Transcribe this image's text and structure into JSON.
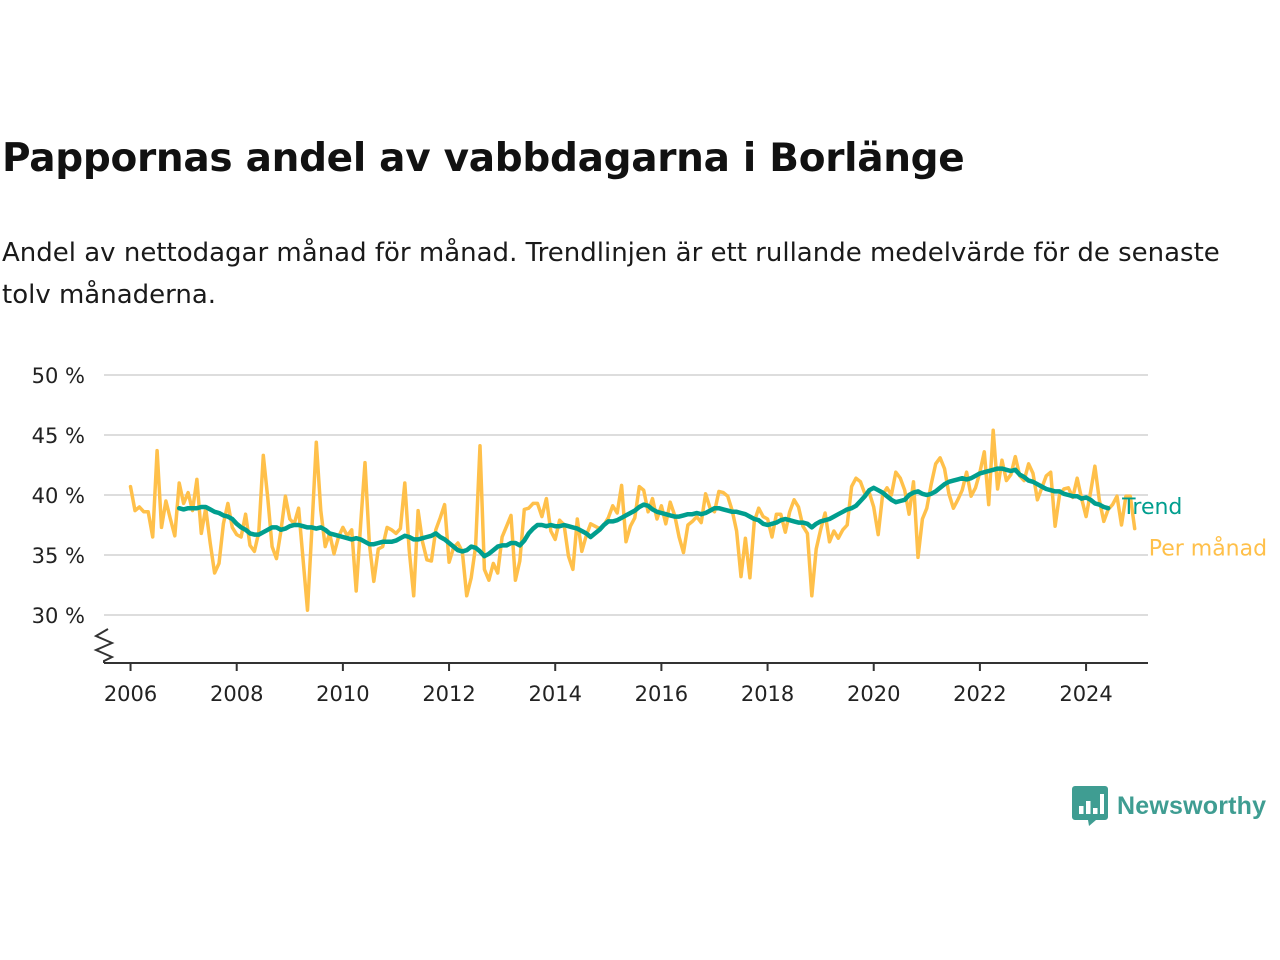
{
  "title": "Pappornas andel av vabbdagarna i Borlänge",
  "subtitle": "Andel av nettodagar månad för månad. Trendlinjen är ett rullande medelvärde för de senaste tolv månaderna.",
  "brand": "Newsworthy",
  "colors": {
    "monthly": "#ffc04a",
    "trend": "#009e8e",
    "grid": "#dddddd",
    "axis": "#333333"
  },
  "chart_data": {
    "type": "line",
    "x_unit": "date (year-month)",
    "y_unit": "percent",
    "ylim": [
      30,
      50
    ],
    "xlim": [
      "2005-07",
      "2025-03"
    ],
    "y_ticks": [
      30,
      35,
      40,
      45,
      50
    ],
    "y_tick_labels": [
      "30 %",
      "35 %",
      "40 %",
      "45 %",
      "50 %"
    ],
    "x_ticks": [
      2006,
      2008,
      2010,
      2012,
      2014,
      2016,
      2018,
      2020,
      2022,
      2024
    ],
    "x_tick_labels": [
      "2006",
      "2008",
      "2010",
      "2012",
      "2014",
      "2016",
      "2018",
      "2020",
      "2022",
      "2024"
    ],
    "axis_break": true,
    "grid": true,
    "legend": "direct labels at line ends",
    "series": [
      {
        "name": "Per månad",
        "color": "#ffc04a",
        "x_start": "2006-01",
        "frequency": "monthly",
        "values": [
          40.7,
          38.7,
          39.0,
          38.6,
          38.6,
          36.5,
          43.7,
          37.3,
          39.5,
          38.0,
          36.6,
          41.0,
          39.3,
          40.2,
          38.7,
          41.3,
          36.8,
          38.9,
          36.0,
          33.5,
          34.3,
          37.6,
          39.3,
          37.3,
          36.7,
          36.5,
          38.4,
          35.8,
          35.3,
          36.9,
          43.3,
          39.8,
          35.7,
          34.7,
          37.0,
          39.9,
          38.0,
          37.6,
          38.9,
          34.6,
          30.4,
          37.2,
          44.4,
          38.7,
          35.7,
          36.8,
          35.1,
          36.5,
          37.3,
          36.6,
          37.1,
          32.0,
          37.5,
          42.7,
          35.9,
          32.8,
          35.5,
          35.7,
          37.3,
          37.1,
          36.8,
          37.2,
          41.0,
          35.4,
          31.6,
          38.7,
          36.1,
          34.6,
          34.5,
          37.1,
          38.1,
          39.2,
          34.4,
          35.6,
          36.0,
          35.3,
          31.6,
          33.1,
          35.7,
          44.1,
          33.8,
          32.9,
          34.3,
          33.5,
          36.5,
          37.4,
          38.3,
          32.9,
          34.5,
          38.8,
          38.9,
          39.3,
          39.3,
          38.2,
          39.7,
          37.0,
          36.3,
          37.9,
          37.5,
          34.9,
          33.8,
          38.0,
          35.3,
          36.6,
          37.6,
          37.4,
          37.2,
          37.5,
          38.1,
          39.1,
          38.5,
          40.8,
          36.1,
          37.4,
          38.1,
          40.7,
          40.4,
          38.6,
          39.7,
          38.0,
          39.1,
          37.6,
          39.4,
          38.3,
          36.5,
          35.2,
          37.5,
          37.8,
          38.2,
          37.7,
          40.1,
          38.9,
          38.6,
          40.3,
          40.2,
          39.9,
          38.7,
          37.0,
          33.2,
          36.4,
          33.1,
          37.8,
          38.9,
          38.2,
          38.0,
          36.5,
          38.4,
          38.4,
          36.9,
          38.6,
          39.6,
          39.0,
          37.4,
          36.8,
          31.6,
          35.5,
          37.1,
          38.5,
          36.1,
          37.0,
          36.4,
          37.1,
          37.5,
          40.7,
          41.4,
          41.1,
          40.1,
          40.2,
          39.0,
          36.7,
          40.0,
          40.6,
          40.0,
          41.9,
          41.4,
          40.4,
          38.4,
          41.1,
          34.8,
          38.0,
          38.9,
          40.9,
          42.6,
          43.1,
          42.2,
          40.1,
          38.9,
          39.6,
          40.4,
          41.9,
          39.9,
          40.6,
          41.9,
          43.6,
          39.2,
          45.4,
          40.5,
          42.9,
          41.2,
          41.7,
          43.2,
          41.6,
          41.2,
          42.6,
          41.8,
          39.6,
          40.6,
          41.6,
          41.9,
          37.4,
          40.0,
          40.5,
          40.6,
          39.8,
          41.4,
          39.7,
          38.2,
          40.2,
          42.4,
          39.6,
          37.8,
          38.8,
          39.2,
          39.9,
          37.5,
          39.9,
          39.9,
          37.2
        ]
      },
      {
        "name": "Trend",
        "color": "#009e8e",
        "x_start": "2006-12",
        "frequency": "monthly",
        "values": [
          38.9,
          38.8,
          38.9,
          38.9,
          38.9,
          39.0,
          39.0,
          38.8,
          38.6,
          38.5,
          38.3,
          38.2,
          38.0,
          37.6,
          37.3,
          37.1,
          36.8,
          36.7,
          36.7,
          36.9,
          37.1,
          37.3,
          37.3,
          37.1,
          37.2,
          37.4,
          37.5,
          37.5,
          37.4,
          37.3,
          37.3,
          37.2,
          37.3,
          37.1,
          36.8,
          36.7,
          36.6,
          36.5,
          36.4,
          36.3,
          36.4,
          36.3,
          36.1,
          35.9,
          35.9,
          36.0,
          36.1,
          36.1,
          36.1,
          36.2,
          36.4,
          36.6,
          36.5,
          36.3,
          36.3,
          36.4,
          36.5,
          36.6,
          36.8,
          36.5,
          36.3,
          36.0,
          35.7,
          35.4,
          35.3,
          35.4,
          35.7,
          35.6,
          35.3,
          34.9,
          35.1,
          35.4,
          35.7,
          35.8,
          35.8,
          36.0,
          36.0,
          35.8,
          36.2,
          36.8,
          37.2,
          37.5,
          37.5,
          37.4,
          37.5,
          37.4,
          37.4,
          37.5,
          37.4,
          37.3,
          37.2,
          37.0,
          36.8,
          36.5,
          36.8,
          37.1,
          37.5,
          37.8,
          37.8,
          37.9,
          38.1,
          38.3,
          38.5,
          38.7,
          39.0,
          39.2,
          39.1,
          38.8,
          38.6,
          38.5,
          38.4,
          38.3,
          38.2,
          38.2,
          38.3,
          38.4,
          38.4,
          38.5,
          38.4,
          38.5,
          38.7,
          38.9,
          38.9,
          38.8,
          38.7,
          38.6,
          38.6,
          38.5,
          38.4,
          38.2,
          38.0,
          37.9,
          37.6,
          37.5,
          37.6,
          37.7,
          37.9,
          38.0,
          37.9,
          37.8,
          37.7,
          37.7,
          37.6,
          37.3,
          37.6,
          37.8,
          37.9,
          38.0,
          38.2,
          38.4,
          38.6,
          38.8,
          38.9,
          39.1,
          39.5,
          39.9,
          40.4,
          40.6,
          40.4,
          40.2,
          39.9,
          39.6,
          39.4,
          39.5,
          39.6,
          40.0,
          40.2,
          40.3,
          40.1,
          40.0,
          40.1,
          40.3,
          40.6,
          40.9,
          41.1,
          41.2,
          41.3,
          41.4,
          41.3,
          41.4,
          41.6,
          41.8,
          41.9,
          42.0,
          42.1,
          42.2,
          42.2,
          42.1,
          42.0,
          42.1,
          41.7,
          41.5,
          41.2,
          41.1,
          40.9,
          40.7,
          40.5,
          40.4,
          40.3,
          40.3,
          40.1,
          40.0,
          39.9,
          39.9,
          39.7,
          39.8,
          39.6,
          39.3,
          39.2,
          39.0,
          38.9
        ]
      }
    ],
    "end_labels": [
      {
        "series": "Trend",
        "text": "Trend"
      },
      {
        "series": "Per månad",
        "text": "Per månad"
      }
    ]
  }
}
